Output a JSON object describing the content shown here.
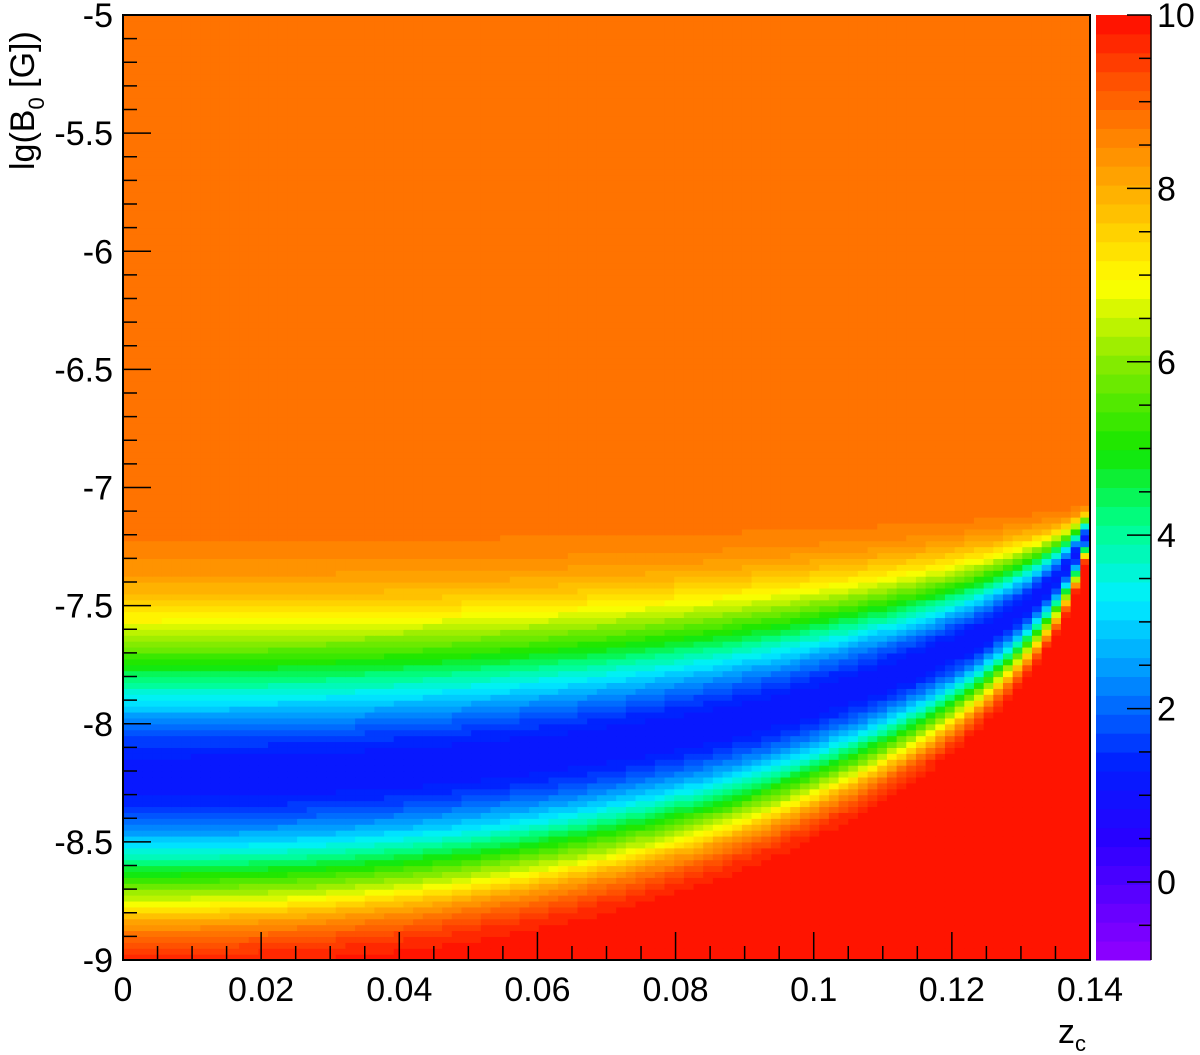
{
  "chart_data": {
    "type": "heatmap",
    "xlabel": {
      "main": "z",
      "sub": "c"
    },
    "ylabel": {
      "main": "lg(B",
      "sub": "0",
      "rest": " [G])"
    },
    "xlim": [
      0,
      0.14
    ],
    "ylim": [
      -9,
      -5
    ],
    "zlim": [
      -0.9,
      10
    ],
    "x_ticks": [
      "0",
      "0.02",
      "0.04",
      "0.06",
      "0.08",
      "0.1",
      "0.12",
      "0.14"
    ],
    "y_ticks": [
      "-9",
      "-8.5",
      "-8",
      "-7.5",
      "-7",
      "-6.5",
      "-6",
      "-5.5",
      "-5"
    ],
    "z_ticks": [
      "0",
      "2",
      "4",
      "6",
      "8",
      "10"
    ],
    "saturation_value": 8.8,
    "colors": {
      "plateau": "#ff7a00",
      "red": "#ff1a00",
      "violet": "#8a00ff",
      "blue": "#0018ff",
      "cyan": "#00f0ff",
      "green": "#20e000",
      "yellow": "#ffff00"
    }
  }
}
